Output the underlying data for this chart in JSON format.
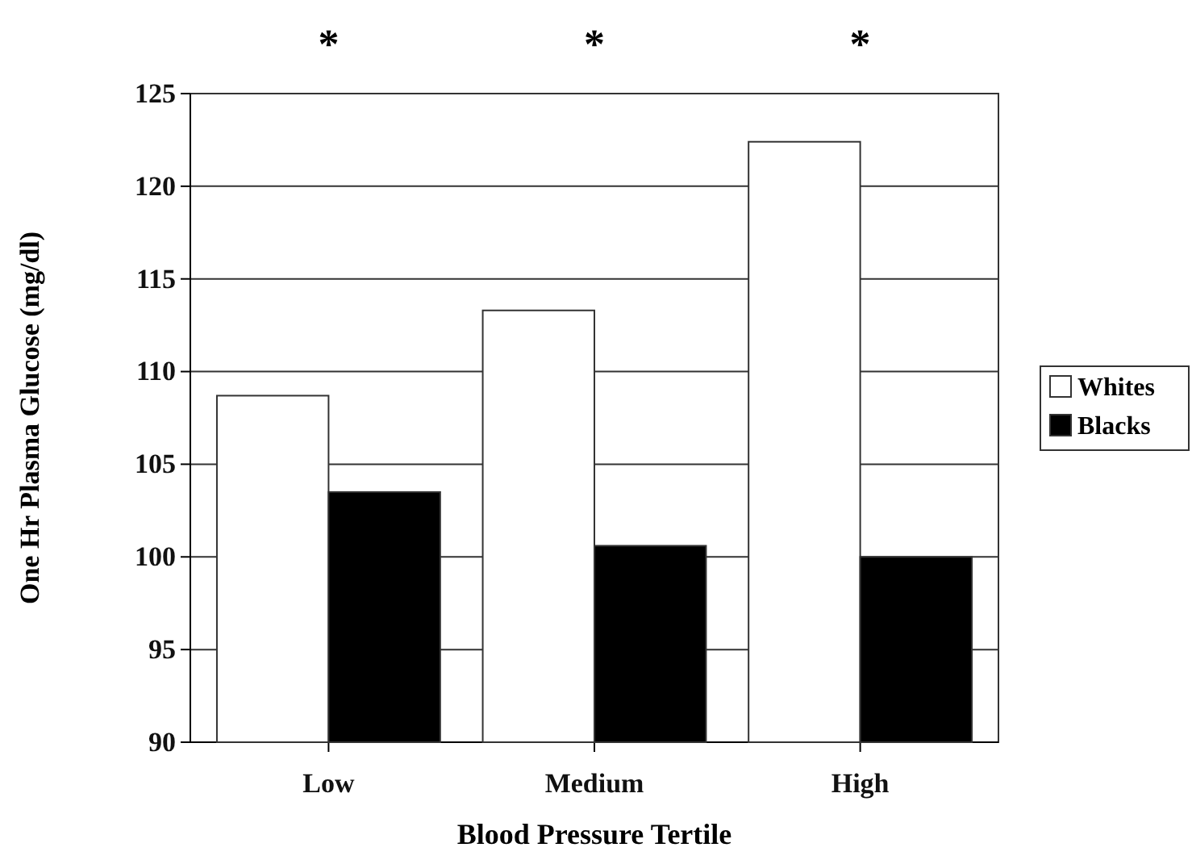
{
  "chart_data": {
    "type": "bar",
    "xlabel": "Blood Pressure Tertile",
    "ylabel": "One Hr Plasma Glucose (mg/dl)",
    "categories": [
      "Low",
      "Medium",
      "High"
    ],
    "series": [
      {
        "name": "Whites",
        "color": "#ffffff",
        "values": [
          108.7,
          113.3,
          122.4
        ]
      },
      {
        "name": "Blacks",
        "color": "#000000",
        "values": [
          103.5,
          100.6,
          100.0
        ]
      }
    ],
    "ylim": [
      90,
      125
    ],
    "yticks": [
      90,
      95,
      100,
      105,
      110,
      115,
      120,
      125
    ],
    "grid": "y",
    "legend": "right",
    "annotations": [
      "*",
      "*",
      "*"
    ]
  }
}
